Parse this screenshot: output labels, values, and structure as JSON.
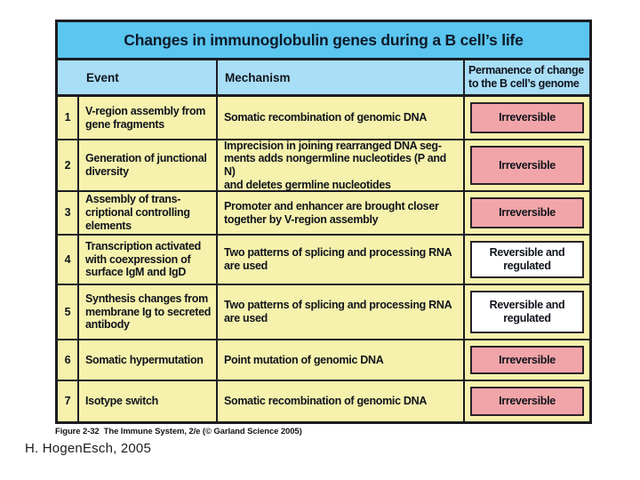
{
  "page": {
    "caption": "Figure 2-32  The Immune System, 2/e (© Garland Science 2005)",
    "attribution": "H. HogenEsch, 2005"
  },
  "table": {
    "title": "Changes in immunoglobulin genes during a B cell’s life",
    "headers": {
      "event": "Event",
      "mechanism": "Mechanism",
      "permanence": "Permanence of change\nto the B cell’s genome"
    },
    "rows": [
      {
        "num": "1",
        "event": "V-region assembly from\ngene fragments",
        "mechanism": "Somatic recombination of genomic DNA",
        "permanence": "Irreversible",
        "status": "irreversible"
      },
      {
        "num": "2",
        "event": "Generation of junctional\ndiversity",
        "mechanism": "Imprecision in joining rearranged DNA seg-\nments adds nongermline nucleotides (P and N)\nand deletes germline nucleotides",
        "permanence": "Irreversible",
        "status": "irreversible"
      },
      {
        "num": "3",
        "event": "Assembly of trans-\ncriptional  controlling\nelements",
        "mechanism": "Promoter and enhancer are brought closer\ntogether by V-region assembly",
        "permanence": "Irreversible",
        "status": "irreversible"
      },
      {
        "num": "4",
        "event": "Transcription activated\nwith coexpression of\nsurface IgM and IgD",
        "mechanism": "Two patterns of splicing and processing RNA\nare used",
        "permanence": "Reversible and\nregulated",
        "status": "reversible"
      },
      {
        "num": "5",
        "event": "Synthesis changes from\nmembrane Ig to secreted\nantibody",
        "mechanism": "Two patterns of splicing and processing RNA\nare used",
        "permanence": "Reversible and\nregulated",
        "status": "reversible"
      },
      {
        "num": "6",
        "event": "Somatic hypermutation",
        "mechanism": "Point mutation of genomic DNA",
        "permanence": "Irreversible",
        "status": "irreversible"
      },
      {
        "num": "7",
        "event": "Isotype switch",
        "mechanism": "Somatic recombination of genomic DNA",
        "permanence": "Irreversible",
        "status": "irreversible"
      }
    ]
  },
  "colors": {
    "title_bar": "#5bc6f0",
    "header_row": "#a9def7",
    "cell_yellow": "#f6f2ad",
    "irreversible_bg": "#f2a5a8",
    "reversible_bg": "#ffffff",
    "border": "#1c1c22"
  }
}
